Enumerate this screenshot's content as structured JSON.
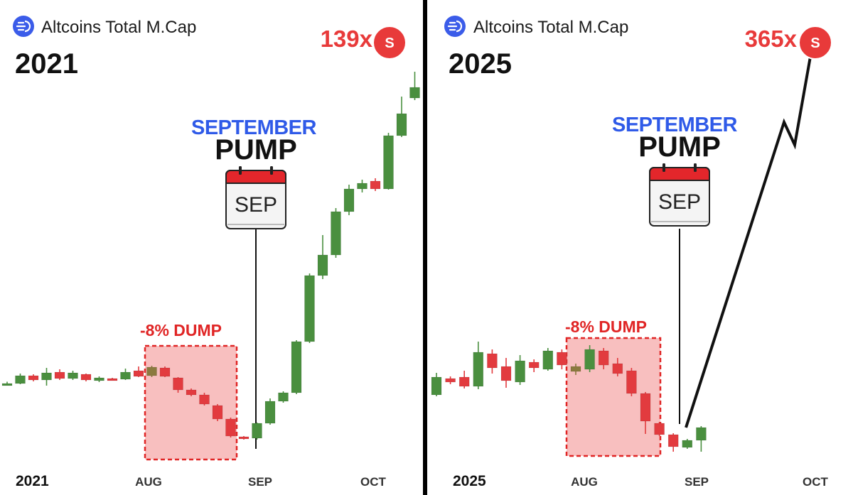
{
  "colors": {
    "up": "#4a8f3f",
    "down": "#e23b3f",
    "neutral": "#8b7a3f",
    "dump_fill": "#f7b4b4",
    "dump_border": "#e02525",
    "accent_blue": "#2f5ae8",
    "divider": "#000000"
  },
  "chart_data": [
    {
      "type": "candlestick",
      "title": "Altcoins Total M.Cap",
      "year_label": "2021",
      "multiplier": "139x",
      "badge": "S",
      "annotation_title": "SEPTEMBER",
      "annotation_subtitle": "PUMP",
      "calendar_label": "SEP",
      "dump_label": "-8% DUMP",
      "x_ticks": [
        "2021",
        "AUG",
        "SEP",
        "OCT"
      ],
      "candles": [
        {
          "o": 2.0,
          "c": 3.0,
          "h": 5.5,
          "l": 0.0
        },
        {
          "o": 3.0,
          "c": 14.0,
          "h": 17.0,
          "l": 2.0
        },
        {
          "o": 14.0,
          "c": 8.0,
          "h": 16.0,
          "l": 6.0
        },
        {
          "o": 8.0,
          "c": 18.0,
          "h": 25.0,
          "l": 0.0
        },
        {
          "o": 19.0,
          "c": 10.0,
          "h": 23.0,
          "l": 8.0
        },
        {
          "o": 10.0,
          "c": 18.0,
          "h": 21.0,
          "l": 8.0
        },
        {
          "o": 16.0,
          "c": 8.0,
          "h": 17.0,
          "l": 6.0
        },
        {
          "o": 7.0,
          "c": 11.0,
          "h": 13.0,
          "l": 5.0
        },
        {
          "o": 10.0,
          "c": 8.0,
          "h": 11.0,
          "l": 7.0
        },
        {
          "o": 9.0,
          "c": 19.0,
          "h": 24.0,
          "l": 8.0
        },
        {
          "o": 21.0,
          "c": 13.0,
          "h": 27.0,
          "l": 12.0
        },
        {
          "o": 14.0,
          "c": 26.0,
          "h": 28.0,
          "l": 12.0
        },
        {
          "o": 25.0,
          "c": 13.0,
          "h": 27.0,
          "l": 12.0
        },
        {
          "o": 11.0,
          "c": -6.0,
          "h": 12.0,
          "l": -10.0
        },
        {
          "o": -6.0,
          "c": -13.0,
          "h": -4.0,
          "l": -15.0
        },
        {
          "o": -13.0,
          "c": -26.0,
          "h": -10.0,
          "l": -28.0
        },
        {
          "o": -28.0,
          "c": -47.0,
          "h": -26.0,
          "l": -50.0
        },
        {
          "o": -47.0,
          "c": -71.0,
          "h": -45.0,
          "l": -73.0
        },
        {
          "o": -72.0,
          "c": -74.0,
          "h": -71.0,
          "l": -76.0
        },
        {
          "o": -74.0,
          "c": -53.0,
          "h": -52.0,
          "l": -76.0
        },
        {
          "o": -53.0,
          "c": -22.0,
          "h": -18.0,
          "l": -55.0
        },
        {
          "o": -22.0,
          "c": -10.0,
          "h": -8.0,
          "l": -24.0
        },
        {
          "o": -10.0,
          "c": 62.0,
          "h": 64.0,
          "l": -12.0
        },
        {
          "o": 62.0,
          "c": 155.0,
          "h": 158.0,
          "l": 60.0
        },
        {
          "o": 155.0,
          "c": 184.0,
          "h": 212.0,
          "l": 150.0
        },
        {
          "o": 184.0,
          "c": 245.0,
          "h": 250.0,
          "l": 180.0
        },
        {
          "o": 245.0,
          "c": 277.0,
          "h": 283.0,
          "l": 240.0
        },
        {
          "o": 277.0,
          "c": 285.0,
          "h": 290.0,
          "l": 272.0
        },
        {
          "o": 288.0,
          "c": 277.0,
          "h": 292.0,
          "l": 274.0
        },
        {
          "o": 277.0,
          "c": 352.0,
          "h": 356.0,
          "l": 276.0
        },
        {
          "o": 352.0,
          "c": 383.0,
          "h": 407.0,
          "l": 350.0
        },
        {
          "o": 405.0,
          "c": 420.0,
          "h": 442.0,
          "l": 402.0
        }
      ]
    },
    {
      "type": "candlestick",
      "title": "Altcoins Total M.Cap",
      "year_label": "2025",
      "multiplier": "365x",
      "badge": "S",
      "annotation_title": "SEPTEMBER",
      "annotation_subtitle": "PUMP",
      "calendar_label": "SEP",
      "dump_label": "-8% DUMP",
      "x_ticks": [
        "2025",
        "AUG",
        "SEP",
        "OCT"
      ],
      "candles": [
        {
          "o": 0.0,
          "c": 25.0,
          "h": 31.0,
          "l": -2.0
        },
        {
          "o": 23.0,
          "c": 18.0,
          "h": 26.0,
          "l": 15.0
        },
        {
          "o": 25.0,
          "c": 12.0,
          "h": 34.0,
          "l": 9.0
        },
        {
          "o": 12.0,
          "c": 60.0,
          "h": 75.0,
          "l": 8.0
        },
        {
          "o": 58.0,
          "c": 38.0,
          "h": 64.0,
          "l": 30.0
        },
        {
          "o": 40.0,
          "c": 20.0,
          "h": 52.0,
          "l": 10.0
        },
        {
          "o": 18.0,
          "c": 48.0,
          "h": 56.0,
          "l": 14.0
        },
        {
          "o": 46.0,
          "c": 38.0,
          "h": 50.0,
          "l": 32.0
        },
        {
          "o": 36.0,
          "c": 62.0,
          "h": 66.0,
          "l": 34.0
        },
        {
          "o": 60.0,
          "c": 42.0,
          "h": 64.0,
          "l": 36.0
        },
        {
          "o": 40.0,
          "c": 33.0,
          "h": 44.0,
          "l": 28.0
        },
        {
          "o": 36.0,
          "c": 64.0,
          "h": 70.0,
          "l": 32.0
        },
        {
          "o": 62.0,
          "c": 42.0,
          "h": 66.0,
          "l": 36.0
        },
        {
          "o": 44.0,
          "c": 30.0,
          "h": 52.0,
          "l": 26.0
        },
        {
          "o": 34.0,
          "c": 2.0,
          "h": 38.0,
          "l": -2.0
        },
        {
          "o": 2.0,
          "c": -37.0,
          "h": 4.0,
          "l": -55.0
        },
        {
          "o": -40.0,
          "c": -56.0,
          "h": -38.0,
          "l": -58.0
        },
        {
          "o": -56.0,
          "c": -73.0,
          "h": -54.0,
          "l": -80.0
        },
        {
          "o": -74.0,
          "c": -64.0,
          "h": -62.0,
          "l": -76.0
        },
        {
          "o": -64.0,
          "c": -46.0,
          "h": -44.0,
          "l": -80.0
        }
      ],
      "projection": [
        {
          "x": 0,
          "y": -46.0
        },
        {
          "x": 1,
          "y": 384.0
        },
        {
          "x": 2,
          "y": 352.0
        },
        {
          "x": 3,
          "y": 510.0
        }
      ]
    }
  ]
}
